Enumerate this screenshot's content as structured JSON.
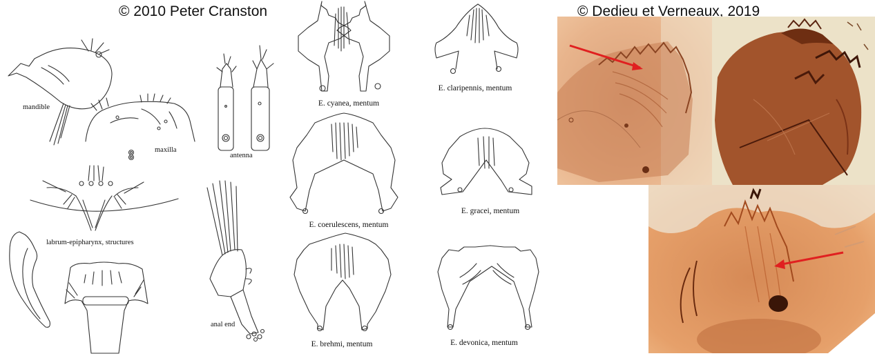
{
  "credits": {
    "left": "© 2010 Peter Cranston",
    "right": "© Dedieu et Verneaux, 2019"
  },
  "labels": {
    "mandible": "mandible",
    "maxilla": "maxilla",
    "antenna": "antenna",
    "labrum": "labrum-epipharynx, structures",
    "anal_end": "anal end"
  },
  "mentum_captions": {
    "cyanea": "E. cyanea, mentum",
    "claripennis": "E. claripennis, mentum",
    "coerulescens": "E. coerulescens, mentum",
    "gracei": "E. gracei, mentum",
    "brehmi": "E. brehmi, mentum",
    "devonica": "E. devonica, mentum"
  },
  "colors": {
    "ink": "#333333",
    "arrow": "#e02020",
    "photo_amber": "#d99a6a",
    "photo_dark": "#7a3a1c"
  }
}
